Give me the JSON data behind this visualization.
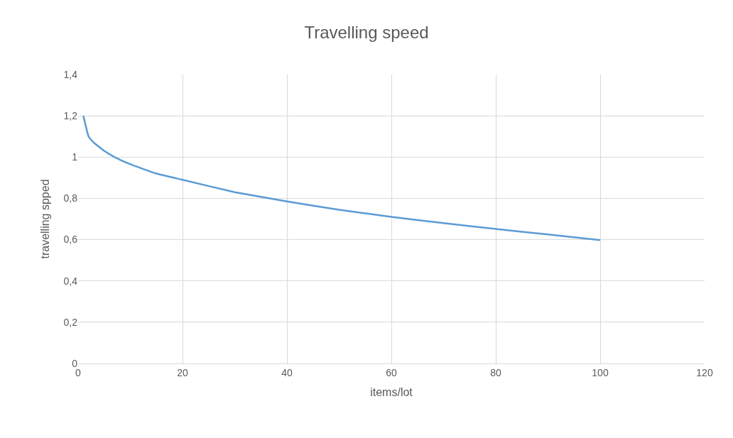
{
  "chart_data": {
    "type": "line",
    "title": "Travelling speed",
    "xlabel": "items/lot",
    "ylabel": "travelling spped",
    "x": [
      1,
      2,
      3,
      5,
      7,
      10,
      15,
      20,
      30,
      40,
      50,
      60,
      70,
      80,
      90,
      100
    ],
    "series": [
      {
        "color": "#5b9bd5",
        "values": [
          1.2,
          1.1,
          1.07,
          1.03,
          1.0,
          0.965,
          0.92,
          0.89,
          0.83,
          0.785,
          0.745,
          0.71,
          0.68,
          0.652,
          0.625,
          0.598
        ]
      }
    ],
    "xlim": [
      0,
      120
    ],
    "xticks": [
      0,
      20,
      40,
      60,
      80,
      100,
      120
    ],
    "ylim": [
      0,
      1.4
    ],
    "yticks": [
      0,
      {
        "value": 0.2,
        "label": "0,2"
      },
      {
        "value": 0.4,
        "label": "0,4"
      },
      {
        "value": 0.6,
        "label": "0,6"
      },
      {
        "value": 0.8,
        "label": "0,8"
      },
      1,
      {
        "value": 1.2,
        "label": "1,2"
      },
      {
        "value": 1.4,
        "label": "1,4"
      }
    ],
    "grid": true,
    "legend": false,
    "marker": "none",
    "line_style": "solid"
  }
}
